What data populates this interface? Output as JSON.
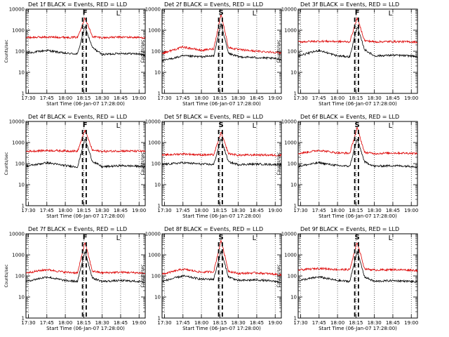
{
  "figure": {
    "xlabel": "Start Time (06-Jan-07 17:28:00)",
    "ylabel": "Counts/sec"
  },
  "axes": {
    "xticks": [
      "17:30",
      "17:45",
      "18:00",
      "18:15",
      "18:30",
      "18:45",
      "19:00"
    ],
    "yticks": [
      "1",
      "10",
      "100",
      "1000",
      "10000"
    ],
    "ylim": [
      1,
      10000
    ],
    "yscale": "log"
  },
  "colors": {
    "events": "#000000",
    "lld": "#dd0000"
  },
  "chart_data": [
    {
      "type": "line",
      "title": "Det 1f BLACK = Events, RED = LLD",
      "flag": "F",
      "corner_mark": "L",
      "series": [
        {
          "name": "Events",
          "color": "#000000",
          "x": [
            "17:28",
            "17:45",
            "18:00",
            "18:10",
            "18:16",
            "18:22",
            "18:30",
            "18:45",
            "19:00",
            "19:05"
          ],
          "y": [
            80,
            110,
            80,
            75,
            1500,
            150,
            70,
            80,
            75,
            60
          ]
        },
        {
          "name": "LLD",
          "color": "#dd0000",
          "x": [
            "17:28",
            "17:45",
            "18:00",
            "18:10",
            "18:16",
            "18:22",
            "18:30",
            "18:45",
            "19:00",
            "19:05"
          ],
          "y": [
            450,
            470,
            460,
            460,
            4000,
            500,
            440,
            470,
            450,
            440
          ]
        }
      ]
    },
    {
      "type": "line",
      "title": "Det 2f BLACK = Events, RED = LLD",
      "flag": "S",
      "corner_mark": "L",
      "series": [
        {
          "name": "Events",
          "color": "#000000",
          "x": [
            "17:28",
            "17:45",
            "18:00",
            "18:10",
            "18:16",
            "18:22",
            "18:30",
            "18:45",
            "19:00",
            "19:05"
          ],
          "y": [
            35,
            60,
            55,
            60,
            2000,
            80,
            55,
            50,
            45,
            40
          ]
        },
        {
          "name": "LLD",
          "color": "#dd0000",
          "x": [
            "17:28",
            "17:45",
            "18:00",
            "18:10",
            "18:16",
            "18:22",
            "18:30",
            "18:45",
            "19:00",
            "19:05"
          ],
          "y": [
            80,
            160,
            110,
            130,
            6000,
            150,
            120,
            100,
            90,
            80
          ]
        }
      ]
    },
    {
      "type": "line",
      "title": "Det 3f BLACK = Events, RED = LLD",
      "flag": "F",
      "corner_mark": "L",
      "series": [
        {
          "name": "Events",
          "color": "#000000",
          "x": [
            "17:28",
            "17:45",
            "18:00",
            "18:10",
            "18:16",
            "18:22",
            "18:30",
            "18:45",
            "19:00",
            "19:05"
          ],
          "y": [
            60,
            110,
            60,
            55,
            1500,
            120,
            60,
            65,
            60,
            55
          ]
        },
        {
          "name": "LLD",
          "color": "#dd0000",
          "x": [
            "17:28",
            "17:45",
            "18:00",
            "18:10",
            "18:16",
            "18:22",
            "18:30",
            "18:45",
            "19:00",
            "19:05"
          ],
          "y": [
            280,
            300,
            290,
            280,
            4000,
            320,
            280,
            290,
            280,
            270
          ]
        }
      ]
    },
    {
      "type": "line",
      "title": "Det 4f BLACK = Events, RED = LLD",
      "flag": "F",
      "corner_mark": "L",
      "series": [
        {
          "name": "Events",
          "color": "#000000",
          "x": [
            "17:28",
            "17:45",
            "18:00",
            "18:10",
            "18:16",
            "18:22",
            "18:30",
            "18:45",
            "19:00",
            "19:05"
          ],
          "y": [
            75,
            110,
            80,
            70,
            1500,
            130,
            70,
            80,
            75,
            70
          ]
        },
        {
          "name": "LLD",
          "color": "#dd0000",
          "x": [
            "17:28",
            "17:45",
            "18:00",
            "18:10",
            "18:16",
            "18:22",
            "18:30",
            "18:45",
            "19:00",
            "19:05"
          ],
          "y": [
            380,
            420,
            400,
            390,
            4000,
            430,
            380,
            400,
            390,
            380
          ]
        }
      ]
    },
    {
      "type": "line",
      "title": "Det 5f BLACK = Events, RED = LLD",
      "flag": "S",
      "corner_mark": "L",
      "series": [
        {
          "name": "Events",
          "color": "#000000",
          "x": [
            "17:28",
            "17:45",
            "18:00",
            "18:10",
            "18:16",
            "18:22",
            "18:30",
            "18:45",
            "19:00",
            "19:05"
          ],
          "y": [
            90,
            110,
            95,
            90,
            1500,
            120,
            90,
            95,
            90,
            90
          ]
        },
        {
          "name": "LLD",
          "color": "#dd0000",
          "x": [
            "17:28",
            "17:45",
            "18:00",
            "18:10",
            "18:16",
            "18:22",
            "18:30",
            "18:45",
            "19:00",
            "19:05"
          ],
          "y": [
            250,
            290,
            260,
            260,
            3000,
            300,
            250,
            260,
            250,
            250
          ]
        }
      ]
    },
    {
      "type": "line",
      "title": "Det 6f BLACK = Events, RED = LLD",
      "flag": "S",
      "corner_mark": "L",
      "series": [
        {
          "name": "Events",
          "color": "#000000",
          "x": [
            "17:28",
            "17:45",
            "18:00",
            "18:10",
            "18:16",
            "18:22",
            "18:30",
            "18:45",
            "19:00",
            "19:05"
          ],
          "y": [
            75,
            110,
            80,
            75,
            1500,
            120,
            75,
            80,
            75,
            70
          ]
        },
        {
          "name": "LLD",
          "color": "#dd0000",
          "x": [
            "17:28",
            "17:45",
            "18:00",
            "18:10",
            "18:16",
            "18:22",
            "18:30",
            "18:45",
            "19:00",
            "19:05"
          ],
          "y": [
            300,
            430,
            320,
            310,
            5000,
            340,
            300,
            320,
            310,
            300
          ]
        }
      ]
    },
    {
      "type": "line",
      "title": "Det 7f BLACK = Events, RED = LLD",
      "flag": "F",
      "corner_mark": "L",
      "series": [
        {
          "name": "Events",
          "color": "#000000",
          "x": [
            "17:28",
            "17:45",
            "18:00",
            "18:10",
            "18:16",
            "18:22",
            "18:30",
            "18:45",
            "19:00",
            "19:05"
          ],
          "y": [
            55,
            90,
            60,
            55,
            1500,
            80,
            55,
            60,
            55,
            50
          ]
        },
        {
          "name": "LLD",
          "color": "#dd0000",
          "x": [
            "17:28",
            "17:45",
            "18:00",
            "18:10",
            "18:16",
            "18:22",
            "18:30",
            "18:45",
            "19:00",
            "19:05"
          ],
          "y": [
            140,
            200,
            150,
            140,
            4000,
            170,
            140,
            150,
            140,
            130
          ]
        }
      ]
    },
    {
      "type": "line",
      "title": "Det 8f BLACK = Events, RED = LLD",
      "flag": "S",
      "corner_mark": "L",
      "series": [
        {
          "name": "Events",
          "color": "#000000",
          "x": [
            "17:28",
            "17:45",
            "18:00",
            "18:10",
            "18:16",
            "18:22",
            "18:30",
            "18:45",
            "19:00",
            "19:05"
          ],
          "y": [
            55,
            100,
            70,
            70,
            1500,
            90,
            60,
            65,
            55,
            50
          ]
        },
        {
          "name": "LLD",
          "color": "#dd0000",
          "x": [
            "17:28",
            "17:45",
            "18:00",
            "18:10",
            "18:16",
            "18:22",
            "18:30",
            "18:45",
            "19:00",
            "19:05"
          ],
          "y": [
            120,
            210,
            150,
            160,
            5000,
            170,
            130,
            140,
            120,
            110
          ]
        }
      ]
    },
    {
      "type": "line",
      "title": "Det 9f BLACK = Events, RED = LLD",
      "flag": "S",
      "corner_mark": "L",
      "series": [
        {
          "name": "Events",
          "color": "#000000",
          "x": [
            "17:28",
            "17:45",
            "18:00",
            "18:10",
            "18:16",
            "18:22",
            "18:30",
            "18:45",
            "19:00",
            "19:05"
          ],
          "y": [
            60,
            90,
            60,
            55,
            1500,
            90,
            55,
            60,
            55,
            50
          ]
        },
        {
          "name": "LLD",
          "color": "#dd0000",
          "x": [
            "17:28",
            "17:45",
            "18:00",
            "18:10",
            "18:16",
            "18:22",
            "18:30",
            "18:45",
            "19:00",
            "19:05"
          ],
          "y": [
            190,
            230,
            200,
            200,
            4000,
            220,
            190,
            200,
            190,
            180
          ]
        }
      ]
    }
  ]
}
